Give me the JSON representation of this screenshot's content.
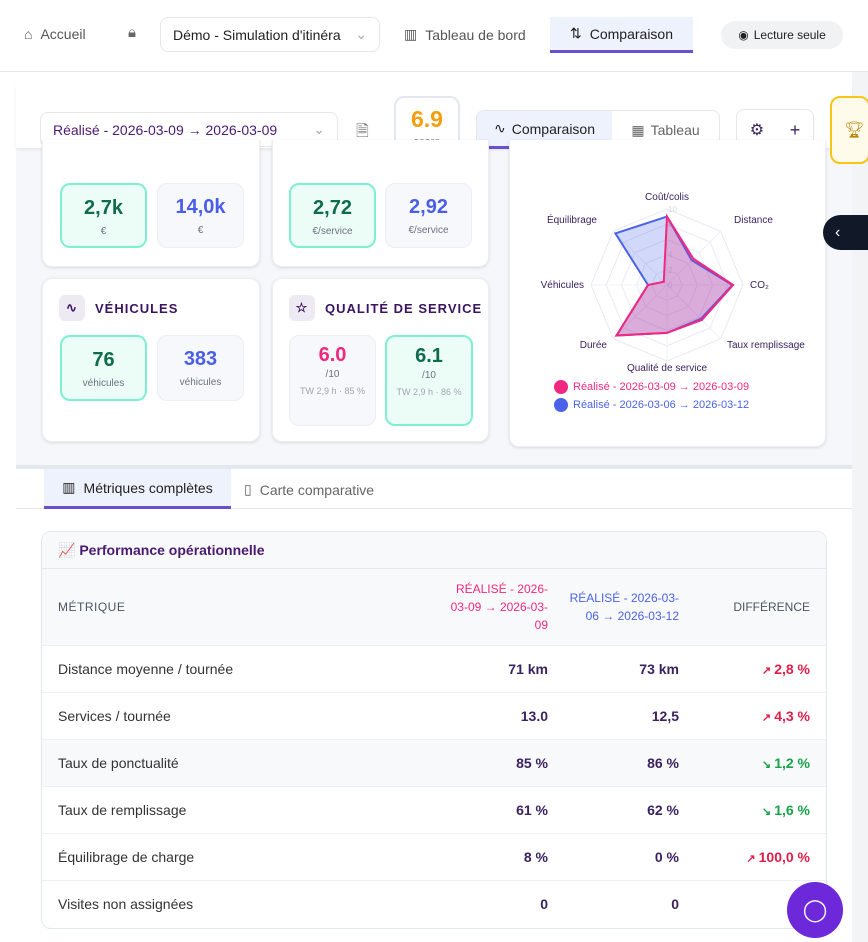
{
  "nav": {
    "home": "Accueil",
    "project": "Démo - Simulation d'itinéra",
    "dashboard": "Tableau de bord",
    "compare": "Comparaison",
    "readonly": "Lecture seule"
  },
  "toolbar": {
    "scenario": "Réalisé - 2026-03-09 → 2026-03-09",
    "score": "6.9",
    "score_label": "score",
    "view_compare": "Comparaison",
    "view_table": "Tableau"
  },
  "cards": {
    "cost": {
      "a": "2,7k",
      "a_unit": "€",
      "b": "14,0k",
      "b_unit": "€"
    },
    "cost_per": {
      "a": "2,72",
      "a_unit": "€/service",
      "b": "2,92",
      "b_unit": "€/service"
    },
    "vehicles": {
      "title": "VÉHICULES",
      "a": "76",
      "a_unit": "véhicules",
      "b": "383",
      "b_unit": "véhicules"
    },
    "quality": {
      "title": "QUALITÉ DE SERVICE",
      "a": "6.0",
      "a_unit": "/10",
      "a_tw": "TW 2,9 h · 85 %",
      "b": "6.1",
      "b_unit": "/10",
      "b_tw": "TW 2,9 h · 86 %"
    }
  },
  "chart_data": {
    "type": "radar",
    "axes": [
      "Coût/colis",
      "Distance",
      "CO₂",
      "Taux remplissage",
      "Qualité de service",
      "Durée",
      "Véhicules",
      "Équilibrage"
    ],
    "range": [
      0,
      10
    ],
    "ticks": [
      "0",
      "2",
      "4",
      "8",
      "10"
    ],
    "series": [
      {
        "name": "Réalisé - 2026-03-09 → 2026-03-09",
        "color": "#f0287f",
        "values": [
          9.0,
          4.9,
          8.7,
          6.5,
          6.3,
          9.4,
          2.5,
          0.6
        ]
      },
      {
        "name": "Réalisé - 2026-03-06 → 2026-03-12",
        "color": "#4a63e8",
        "values": [
          9.0,
          4.6,
          8.6,
          6.3,
          6.3,
          9.4,
          2.5,
          9.6
        ]
      }
    ]
  },
  "tabs": {
    "metrics": "Métriques complètes",
    "map": "Carte comparative"
  },
  "table": {
    "title": "📈 Performance opérationnelle",
    "headers": {
      "metric": "MÉTRIQUE",
      "a": "RÉALISÉ - 2026-03-09 → 2026-03-09",
      "b": "RÉALISÉ - 2026-03-06 → 2026-03-12",
      "diff": "DIFFÉRENCE"
    },
    "rows": [
      {
        "metric": "Distance moyenne / tournée",
        "a": "71 km",
        "b": "73 km",
        "diff": "2,8 %",
        "trend": "up"
      },
      {
        "metric": "Services / tournée",
        "a": "13.0",
        "b": "12,5",
        "diff": "4,3 %",
        "trend": "up"
      },
      {
        "metric": "Taux de ponctualité",
        "a": "85 %",
        "b": "86 %",
        "diff": "1,2 %",
        "trend": "down"
      },
      {
        "metric": "Taux de remplissage",
        "a": "61 %",
        "b": "62 %",
        "diff": "1,6 %",
        "trend": "down"
      },
      {
        "metric": "Équilibrage de charge",
        "a": "8 %",
        "b": "0 %",
        "diff": "100,0 %",
        "trend": "up"
      },
      {
        "metric": "Visites non assignées",
        "a": "0",
        "b": "0",
        "diff": "",
        "trend": ""
      }
    ]
  }
}
